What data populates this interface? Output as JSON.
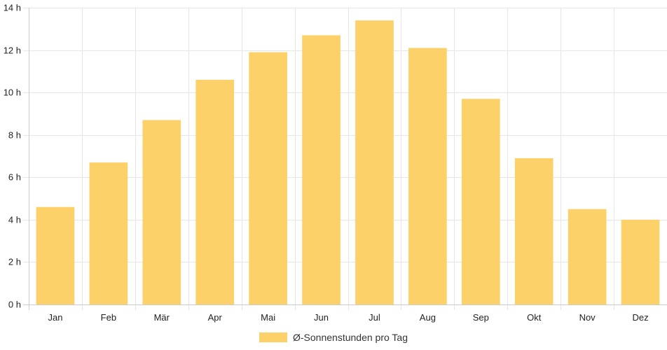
{
  "chart_data": {
    "type": "bar",
    "categories": [
      "Jan",
      "Feb",
      "Mär",
      "Apr",
      "Mai",
      "Jun",
      "Jul",
      "Aug",
      "Sep",
      "Okt",
      "Nov",
      "Dez"
    ],
    "series": [
      {
        "name": "Ø-Sonnenstunden pro Tag",
        "values": [
          4.6,
          6.7,
          8.7,
          10.6,
          11.9,
          12.7,
          13.4,
          12.1,
          9.7,
          6.9,
          4.5,
          4.0
        ]
      }
    ],
    "y_ticks": [
      "0 h",
      "2 h",
      "4 h",
      "6 h",
      "8 h",
      "10 h",
      "12 h",
      "14 h"
    ],
    "ylim": [
      0,
      14
    ],
    "y_tick_step": 2,
    "grid": true,
    "legend_position": "bottom",
    "colors": {
      "bar": "#FDD169",
      "grid": "#e6e6e6",
      "axis": "#cccccc"
    }
  }
}
